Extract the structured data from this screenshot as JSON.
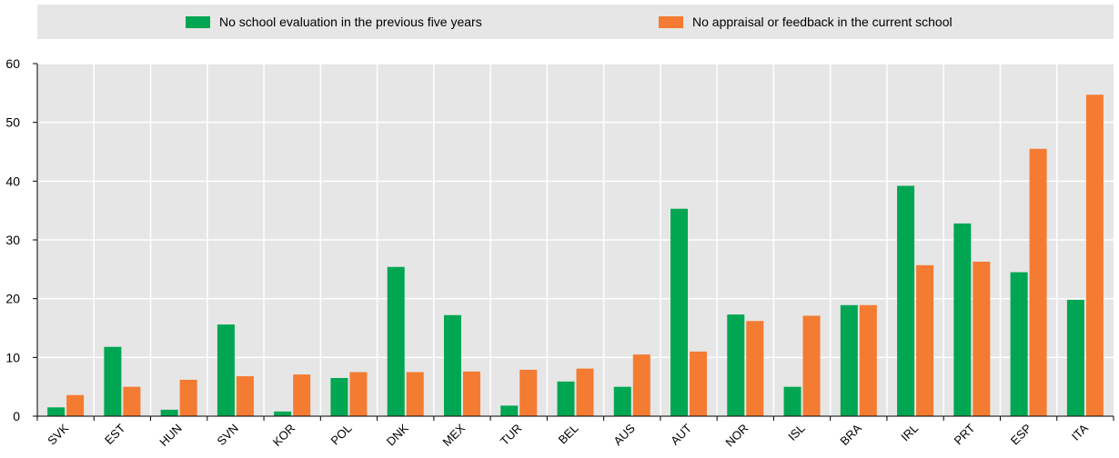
{
  "chart_data": {
    "type": "bar",
    "categories": [
      "SVK",
      "EST",
      "HUN",
      "SVN",
      "KOR",
      "POL",
      "DNK",
      "MEX",
      "TUR",
      "BEL",
      "AUS",
      "AUT",
      "NOR",
      "ISL",
      "BRA",
      "IRL",
      "PRT",
      "ESP",
      "ITA"
    ],
    "series": [
      {
        "name": "No school evaluation in the previous five years",
        "color": "#00a652",
        "values": [
          1.5,
          11.8,
          1.1,
          15.6,
          0.8,
          6.5,
          25.4,
          17.2,
          1.8,
          5.9,
          5.0,
          35.3,
          17.3,
          5.0,
          18.9,
          39.2,
          32.8,
          24.5,
          19.8
        ]
      },
      {
        "name": "No appraisal or feedback in the current school",
        "color": "#f47b32",
        "values": [
          3.6,
          5.0,
          6.2,
          6.8,
          7.1,
          7.5,
          7.5,
          7.6,
          7.9,
          8.1,
          10.5,
          11.0,
          16.2,
          17.1,
          18.9,
          25.7,
          26.3,
          45.5,
          54.7
        ]
      }
    ],
    "ylim": [
      0,
      60
    ],
    "yticks": [
      0,
      10,
      20,
      30,
      40,
      50,
      60
    ],
    "legend": "top",
    "grid": true
  }
}
